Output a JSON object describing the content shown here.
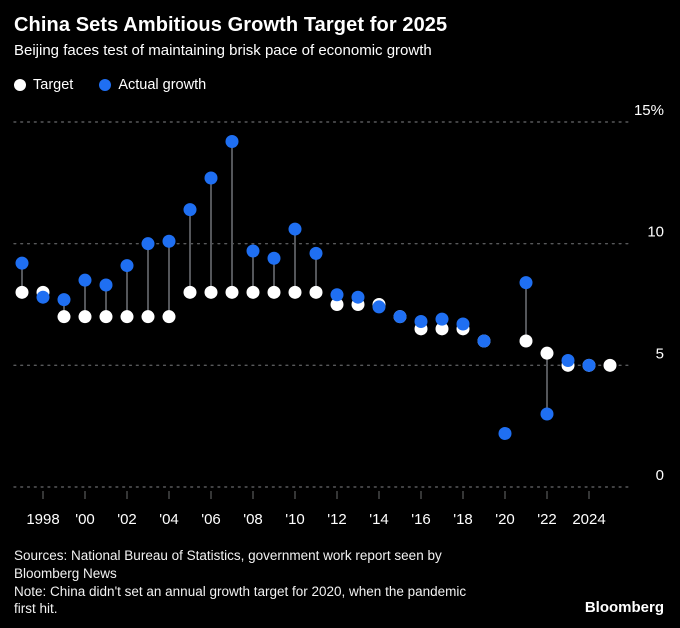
{
  "header": {
    "title": "China Sets Ambitious Growth Target for 2025",
    "subtitle": "Beijing faces test of maintaining brisk pace of economic growth"
  },
  "legend": {
    "items": [
      {
        "label": "Target",
        "color": "#ffffff"
      },
      {
        "label": "Actual growth",
        "color": "#1f6ff2"
      }
    ]
  },
  "chart_data": {
    "type": "scatter",
    "title": "China Sets Ambitious Growth Target for 2025",
    "subtitle": "Beijing faces test of maintaining brisk pace of economic growth",
    "unit": "percent",
    "grid": "dotted-horizontal",
    "legend_position": "top-left",
    "connector_color": "#54565a",
    "x": [
      1997,
      1998,
      1999,
      2000,
      2001,
      2002,
      2003,
      2004,
      2005,
      2006,
      2007,
      2008,
      2009,
      2010,
      2011,
      2012,
      2013,
      2014,
      2015,
      2016,
      2017,
      2018,
      2019,
      2020,
      2021,
      2022,
      2023,
      2024,
      2025
    ],
    "series": [
      {
        "name": "Target",
        "color": "#ffffff",
        "values": [
          8,
          8,
          7,
          7,
          7,
          7,
          7,
          7,
          8,
          8,
          8,
          8,
          8,
          8,
          8,
          7.5,
          7.5,
          7.5,
          7,
          6.5,
          6.5,
          6.5,
          6,
          null,
          6,
          5.5,
          5,
          5,
          5
        ]
      },
      {
        "name": "Actual growth",
        "color": "#1f6ff2",
        "values": [
          9.2,
          7.8,
          7.7,
          8.5,
          8.3,
          9.1,
          10.0,
          10.1,
          11.4,
          12.7,
          14.2,
          9.7,
          9.4,
          10.6,
          9.6,
          7.9,
          7.8,
          7.4,
          7.0,
          6.8,
          6.9,
          6.7,
          6.0,
          2.2,
          8.4,
          3.0,
          5.2,
          5.0,
          null
        ]
      }
    ],
    "ylim": [
      0,
      15
    ],
    "yticks": [
      {
        "value": 0,
        "label": "0"
      },
      {
        "value": 5,
        "label": "5"
      },
      {
        "value": 10,
        "label": "10"
      },
      {
        "value": 15,
        "label": "15%"
      }
    ],
    "xticks": [
      {
        "value": 1998,
        "label": "1998"
      },
      {
        "value": 2000,
        "label": "'00"
      },
      {
        "value": 2002,
        "label": "'02"
      },
      {
        "value": 2004,
        "label": "'04"
      },
      {
        "value": 2006,
        "label": "'06"
      },
      {
        "value": 2008,
        "label": "'08"
      },
      {
        "value": 2010,
        "label": "'10"
      },
      {
        "value": 2012,
        "label": "'12"
      },
      {
        "value": 2014,
        "label": "'14"
      },
      {
        "value": 2016,
        "label": "'16"
      },
      {
        "value": 2018,
        "label": "'18"
      },
      {
        "value": 2020,
        "label": "'20"
      },
      {
        "value": 2022,
        "label": "'22"
      },
      {
        "value": 2024,
        "label": "2024"
      }
    ]
  },
  "footer": {
    "sources": "Sources: National Bureau of Statistics, government work report seen by Bloomberg News",
    "note": "Note: China didn't set an annual growth target for 2020, when the pandemic first hit.",
    "brand": "Bloomberg"
  }
}
